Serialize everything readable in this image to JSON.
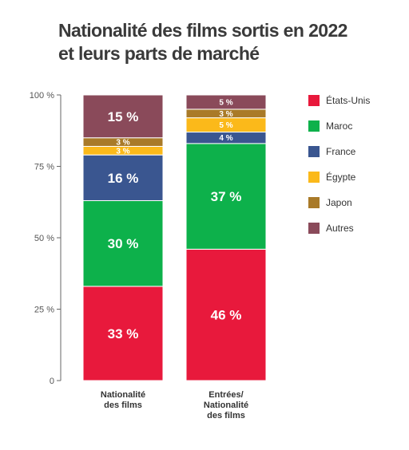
{
  "title_line1": "Nationalité des films sortis en 2022",
  "title_line2": "et leurs parts de marché",
  "colors": {
    "etats_unis": "#e8193c",
    "maroc": "#0db14b",
    "france": "#3a5690",
    "egypte": "#fbb91a",
    "japon": "#a97a28",
    "autres": "#8a4a5a",
    "axis": "#666666",
    "text": "#333333"
  },
  "chart_data": {
    "type": "bar",
    "stacked": true,
    "title": "Nationalité des films sortis en 2022 et leurs parts de marché",
    "categories": [
      "Nationalité\ndes films",
      "Entrées/\nNationalité\ndes films"
    ],
    "ylim": [
      0,
      100
    ],
    "yticks": [
      0,
      25,
      50,
      75,
      100
    ],
    "ytick_labels": [
      "0",
      "25 %",
      "50 %",
      "75 %",
      "100 %"
    ],
    "grid": false,
    "legend_position": "right",
    "series": [
      {
        "name": "États-Unis",
        "color_key": "etats_unis",
        "values": [
          33,
          46
        ],
        "labels": [
          "33 %",
          "46 %"
        ]
      },
      {
        "name": "Maroc",
        "color_key": "maroc",
        "values": [
          30,
          37
        ],
        "labels": [
          "30 %",
          "37 %"
        ]
      },
      {
        "name": "France",
        "color_key": "france",
        "values": [
          16,
          4
        ],
        "labels": [
          "16 %",
          "4 %"
        ]
      },
      {
        "name": "Égypte",
        "color_key": "egypte",
        "values": [
          3,
          5
        ],
        "labels": [
          "3 %",
          "5 %"
        ]
      },
      {
        "name": "Japon",
        "color_key": "japon",
        "values": [
          3,
          3
        ],
        "labels": [
          "3 %",
          "3 %"
        ]
      },
      {
        "name": "Autres",
        "color_key": "autres",
        "values": [
          15,
          5
        ],
        "labels": [
          "15 %",
          "5 %"
        ]
      }
    ]
  }
}
